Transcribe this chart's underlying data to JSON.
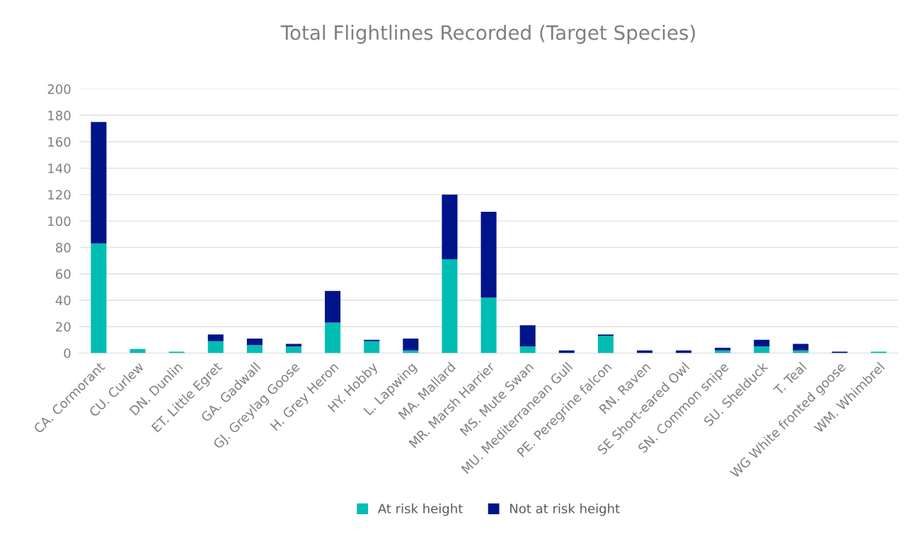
{
  "chart_data": {
    "type": "bar",
    "title": "Total Flightlines Recorded (Target Species)",
    "stacked": true,
    "categories": [
      "CA. Cormorant",
      "CU. Curlew",
      "DN. Dunlin",
      "ET. Little Egret",
      "GA. Gadwall",
      "GJ. Greylag Goose",
      "H. Grey Heron",
      "HY. Hobby",
      "L. Lapwing",
      "MA. Mallard",
      "MR. Marsh Harrier",
      "MS. Mute Swan",
      "MU. Mediterranean Gull",
      "PE. Peregrine falcon",
      "RN. Raven",
      "SE Short-eared Owl",
      "SN. Common snipe",
      "SU. Shelduck",
      "T. Teal",
      "WG White fronted goose",
      "WM. Whimbrel"
    ],
    "series": [
      {
        "name": "At risk height",
        "color": "#00bdb4",
        "values": [
          83,
          3,
          1,
          9,
          6,
          5,
          23,
          9,
          2,
          71,
          42,
          5,
          0,
          13,
          0,
          0,
          2,
          5,
          2,
          0,
          1
        ]
      },
      {
        "name": "Not at risk height",
        "color": "#001489",
        "values": [
          92,
          0,
          0,
          5,
          5,
          2,
          24,
          1,
          9,
          49,
          65,
          16,
          2,
          1,
          2,
          2,
          2,
          5,
          5,
          1,
          0
        ]
      }
    ],
    "ylim": [
      0,
      200
    ],
    "yticks": [
      0,
      20,
      40,
      60,
      80,
      100,
      120,
      140,
      160,
      180,
      200
    ],
    "grid": "y",
    "legend": "bottom"
  }
}
